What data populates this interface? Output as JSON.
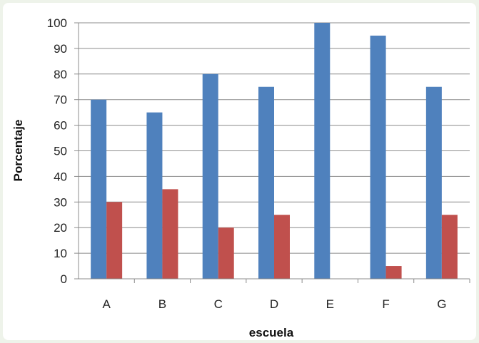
{
  "chart_data": {
    "type": "bar",
    "title": "",
    "xlabel": "escuela",
    "ylabel": "Porcentaje",
    "categories": [
      "A",
      "B",
      "C",
      "D",
      "E",
      "F",
      "G"
    ],
    "series": [
      {
        "values": [
          70,
          65,
          80,
          75,
          100,
          95,
          75
        ],
        "color": "#4f81bd"
      },
      {
        "values": [
          30,
          35,
          20,
          25,
          0,
          5,
          25
        ],
        "color": "#c0504d"
      }
    ],
    "ylim": [
      0,
      100
    ],
    "yticks": [
      0,
      10,
      20,
      30,
      40,
      50,
      60,
      70,
      80,
      90,
      100
    ],
    "grid": true,
    "legend": "none"
  }
}
